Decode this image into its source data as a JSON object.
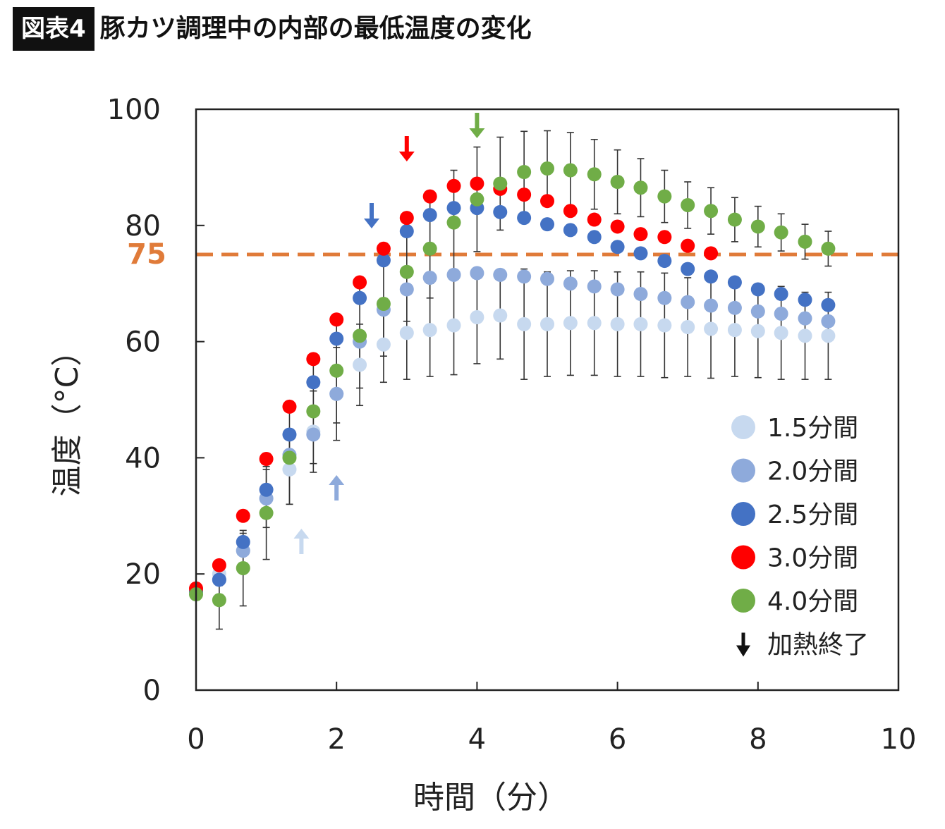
{
  "header": {
    "figure_tag": "図表4",
    "title": "豚カツ調理中の内部の最低温度の変化"
  },
  "colors": {
    "s15": "#c7d9ef",
    "s20": "#8eaadb",
    "s25": "#4472c4",
    "s30": "#ff0000",
    "s40": "#70ad47",
    "threshold": "#e07b39"
  },
  "chart_data": {
    "type": "scatter",
    "title": "豚カツ調理中の内部の最低温度の変化",
    "xlabel": "時間（分）",
    "ylabel": "温度（°C）",
    "xlim": [
      0,
      10
    ],
    "ylim": [
      0,
      100
    ],
    "x_ticks": [
      "0",
      "2",
      "4",
      "6",
      "8",
      "10"
    ],
    "y_ticks": [
      "0",
      "20",
      "40",
      "60",
      "80",
      "100"
    ],
    "grid": false,
    "legend_position": "bottom-right",
    "threshold": {
      "value": 75,
      "label": "75"
    },
    "series": [
      {
        "name": "1.5分間",
        "color": "#c7d9ef",
        "end_time": 1.5,
        "x": [
          0,
          0.33,
          0.67,
          1.0,
          1.33,
          1.67,
          2.0,
          2.33,
          2.67,
          3.0,
          3.33,
          3.67,
          4.0,
          4.33,
          4.67,
          5.0,
          5.33,
          5.67,
          6.0,
          6.33,
          6.67,
          7.0,
          7.33,
          7.67,
          8.0,
          8.33,
          8.67,
          9.0
        ],
        "y": [
          17,
          20,
          24,
          33,
          38,
          44.5,
          51,
          56,
          59.5,
          61.5,
          62,
          62.8,
          64.2,
          64.5,
          63,
          63,
          63.2,
          63.2,
          63,
          63,
          62.8,
          62.5,
          62.2,
          62,
          61.8,
          61.5,
          61,
          61
        ],
        "err": [
          1,
          2,
          3,
          5,
          6,
          7,
          8,
          7,
          6.5,
          8,
          8,
          8.5,
          8,
          7.5,
          9.5,
          9,
          9,
          9,
          9,
          9,
          9,
          8.5,
          8.5,
          8,
          8,
          8,
          7.5,
          7.5
        ]
      },
      {
        "name": "2.0分間",
        "color": "#8eaadb",
        "end_time": 2.0,
        "x": [
          0,
          0.33,
          0.67,
          1.0,
          1.33,
          1.67,
          2.0,
          2.33,
          2.67,
          3.0,
          3.33,
          3.67,
          4.0,
          4.33,
          4.67,
          5.0,
          5.33,
          5.67,
          6.0,
          6.33,
          6.67,
          7.0,
          7.33,
          7.67,
          8.0,
          8.33,
          8.67,
          9.0
        ],
        "y": [
          17,
          19,
          24,
          33,
          40.5,
          44,
          51,
          60,
          65.5,
          69,
          71,
          71.5,
          71.8,
          71.5,
          71.2,
          70.8,
          70,
          69.5,
          69,
          68.2,
          67.5,
          66.8,
          66.2,
          65.8,
          65.2,
          64.8,
          64,
          63.5
        ],
        "err": []
      },
      {
        "name": "2.5分間",
        "color": "#4472c4",
        "end_time": 2.5,
        "x": [
          0,
          0.33,
          0.67,
          1.0,
          1.33,
          1.67,
          2.0,
          2.33,
          2.67,
          3.0,
          3.33,
          3.67,
          4.0,
          4.33,
          4.67,
          5.0,
          5.33,
          5.67,
          6.0,
          6.33,
          6.67,
          7.0,
          7.33,
          7.67,
          8.0,
          8.33,
          8.67,
          9.0
        ],
        "y": [
          17,
          19,
          25.5,
          34.5,
          44,
          53,
          60.5,
          67.5,
          74,
          79,
          81.8,
          83,
          83,
          82.3,
          81.3,
          80.2,
          79.2,
          78,
          76.3,
          75.2,
          73.9,
          72.5,
          71.2,
          70.2,
          69,
          68.2,
          67.2,
          66.3
        ],
        "err": []
      },
      {
        "name": "3.0分間",
        "color": "#ff0000",
        "end_time": 3.0,
        "x": [
          0,
          0.33,
          0.67,
          1.0,
          1.33,
          1.67,
          2.0,
          2.33,
          2.67,
          3.0,
          3.33,
          3.67,
          4.0,
          4.33,
          4.67,
          5.0,
          5.33,
          5.67,
          6.0,
          6.33,
          6.67,
          7.0,
          7.33
        ],
        "y": [
          17.5,
          21.5,
          30,
          39.8,
          48.8,
          57,
          63.8,
          70.2,
          76,
          81.3,
          85,
          86.8,
          87.2,
          86.3,
          85.3,
          84.2,
          82.5,
          81,
          79.8,
          78.5,
          78,
          76.5,
          75.2
        ],
        "err": []
      },
      {
        "name": "4.0分間",
        "color": "#70ad47",
        "end_time": 4.0,
        "x": [
          0,
          0.33,
          0.67,
          1.0,
          1.33,
          1.67,
          2.0,
          2.33,
          2.67,
          3.0,
          3.33,
          3.67,
          4.0,
          4.33,
          4.67,
          5.0,
          5.33,
          5.67,
          6.0,
          6.33,
          6.67,
          7.0,
          7.33,
          7.67,
          8.0,
          8.33,
          8.67,
          9.0
        ],
        "y": [
          16.5,
          15.5,
          21,
          30.5,
          40,
          48,
          55,
          61,
          66.5,
          72,
          76,
          80.5,
          84.5,
          87.2,
          89.2,
          89.8,
          89.5,
          88.8,
          87.5,
          86.5,
          85,
          83.5,
          82.5,
          81,
          79.8,
          78.8,
          77.2,
          76
        ],
        "err": [
          1,
          5,
          6.5,
          8,
          8,
          9,
          9,
          9,
          9,
          8.5,
          8.5,
          9,
          9,
          8,
          7,
          6.5,
          6.5,
          6,
          5.5,
          5,
          4.5,
          4,
          4,
          3.8,
          3.5,
          3.2,
          3,
          3
        ]
      }
    ],
    "end_marker_legend": "加熱終了"
  }
}
